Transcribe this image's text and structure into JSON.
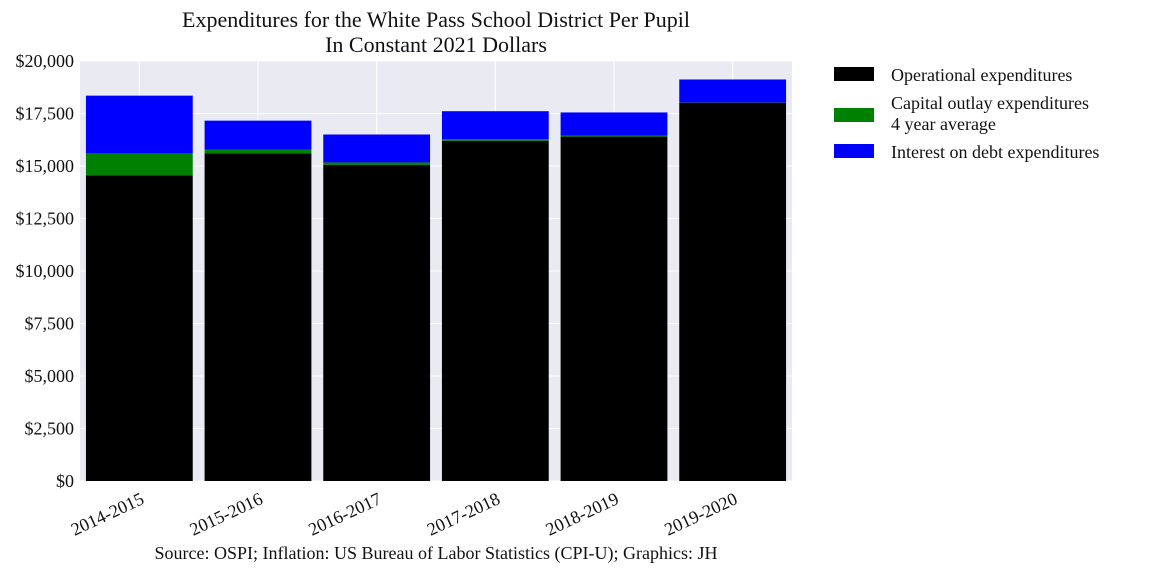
{
  "chart_data": {
    "type": "bar",
    "stacked": true,
    "title_lines": [
      "Expenditures for the White Pass School District Per Pupil",
      "In Constant 2021 Dollars"
    ],
    "categories": [
      "2014-2015",
      "2015-2016",
      "2016-2017",
      "2017-2018",
      "2018-2019",
      "2019-2020"
    ],
    "series": [
      {
        "name": "Operational expenditures",
        "color": "#000000",
        "values": [
          14550,
          15600,
          15050,
          16200,
          16400,
          18000
        ]
      },
      {
        "name_lines": [
          "Capital outlay expenditures",
          "4 year average"
        ],
        "color": "#008000",
        "values": [
          1050,
          180,
          120,
          80,
          40,
          20
        ]
      },
      {
        "name": "Interest on debt expenditures",
        "color": "#0000ff",
        "values": [
          2750,
          1380,
          1330,
          1330,
          1110,
          1100
        ]
      }
    ],
    "ylim": [
      0,
      20000
    ],
    "yticks": [
      0,
      2500,
      5000,
      7500,
      10000,
      12500,
      15000,
      17500,
      20000
    ],
    "ytick_labels": [
      "$0",
      "$2,500",
      "$5,000",
      "$7,500",
      "$10,000",
      "$12,500",
      "$15,000",
      "$17,500",
      "$20,000"
    ],
    "grid": true,
    "legend_position": "outside-right",
    "source": "Source: OSPI; Inflation: US Bureau of Labor Statistics (CPI-U); Graphics: JH"
  }
}
